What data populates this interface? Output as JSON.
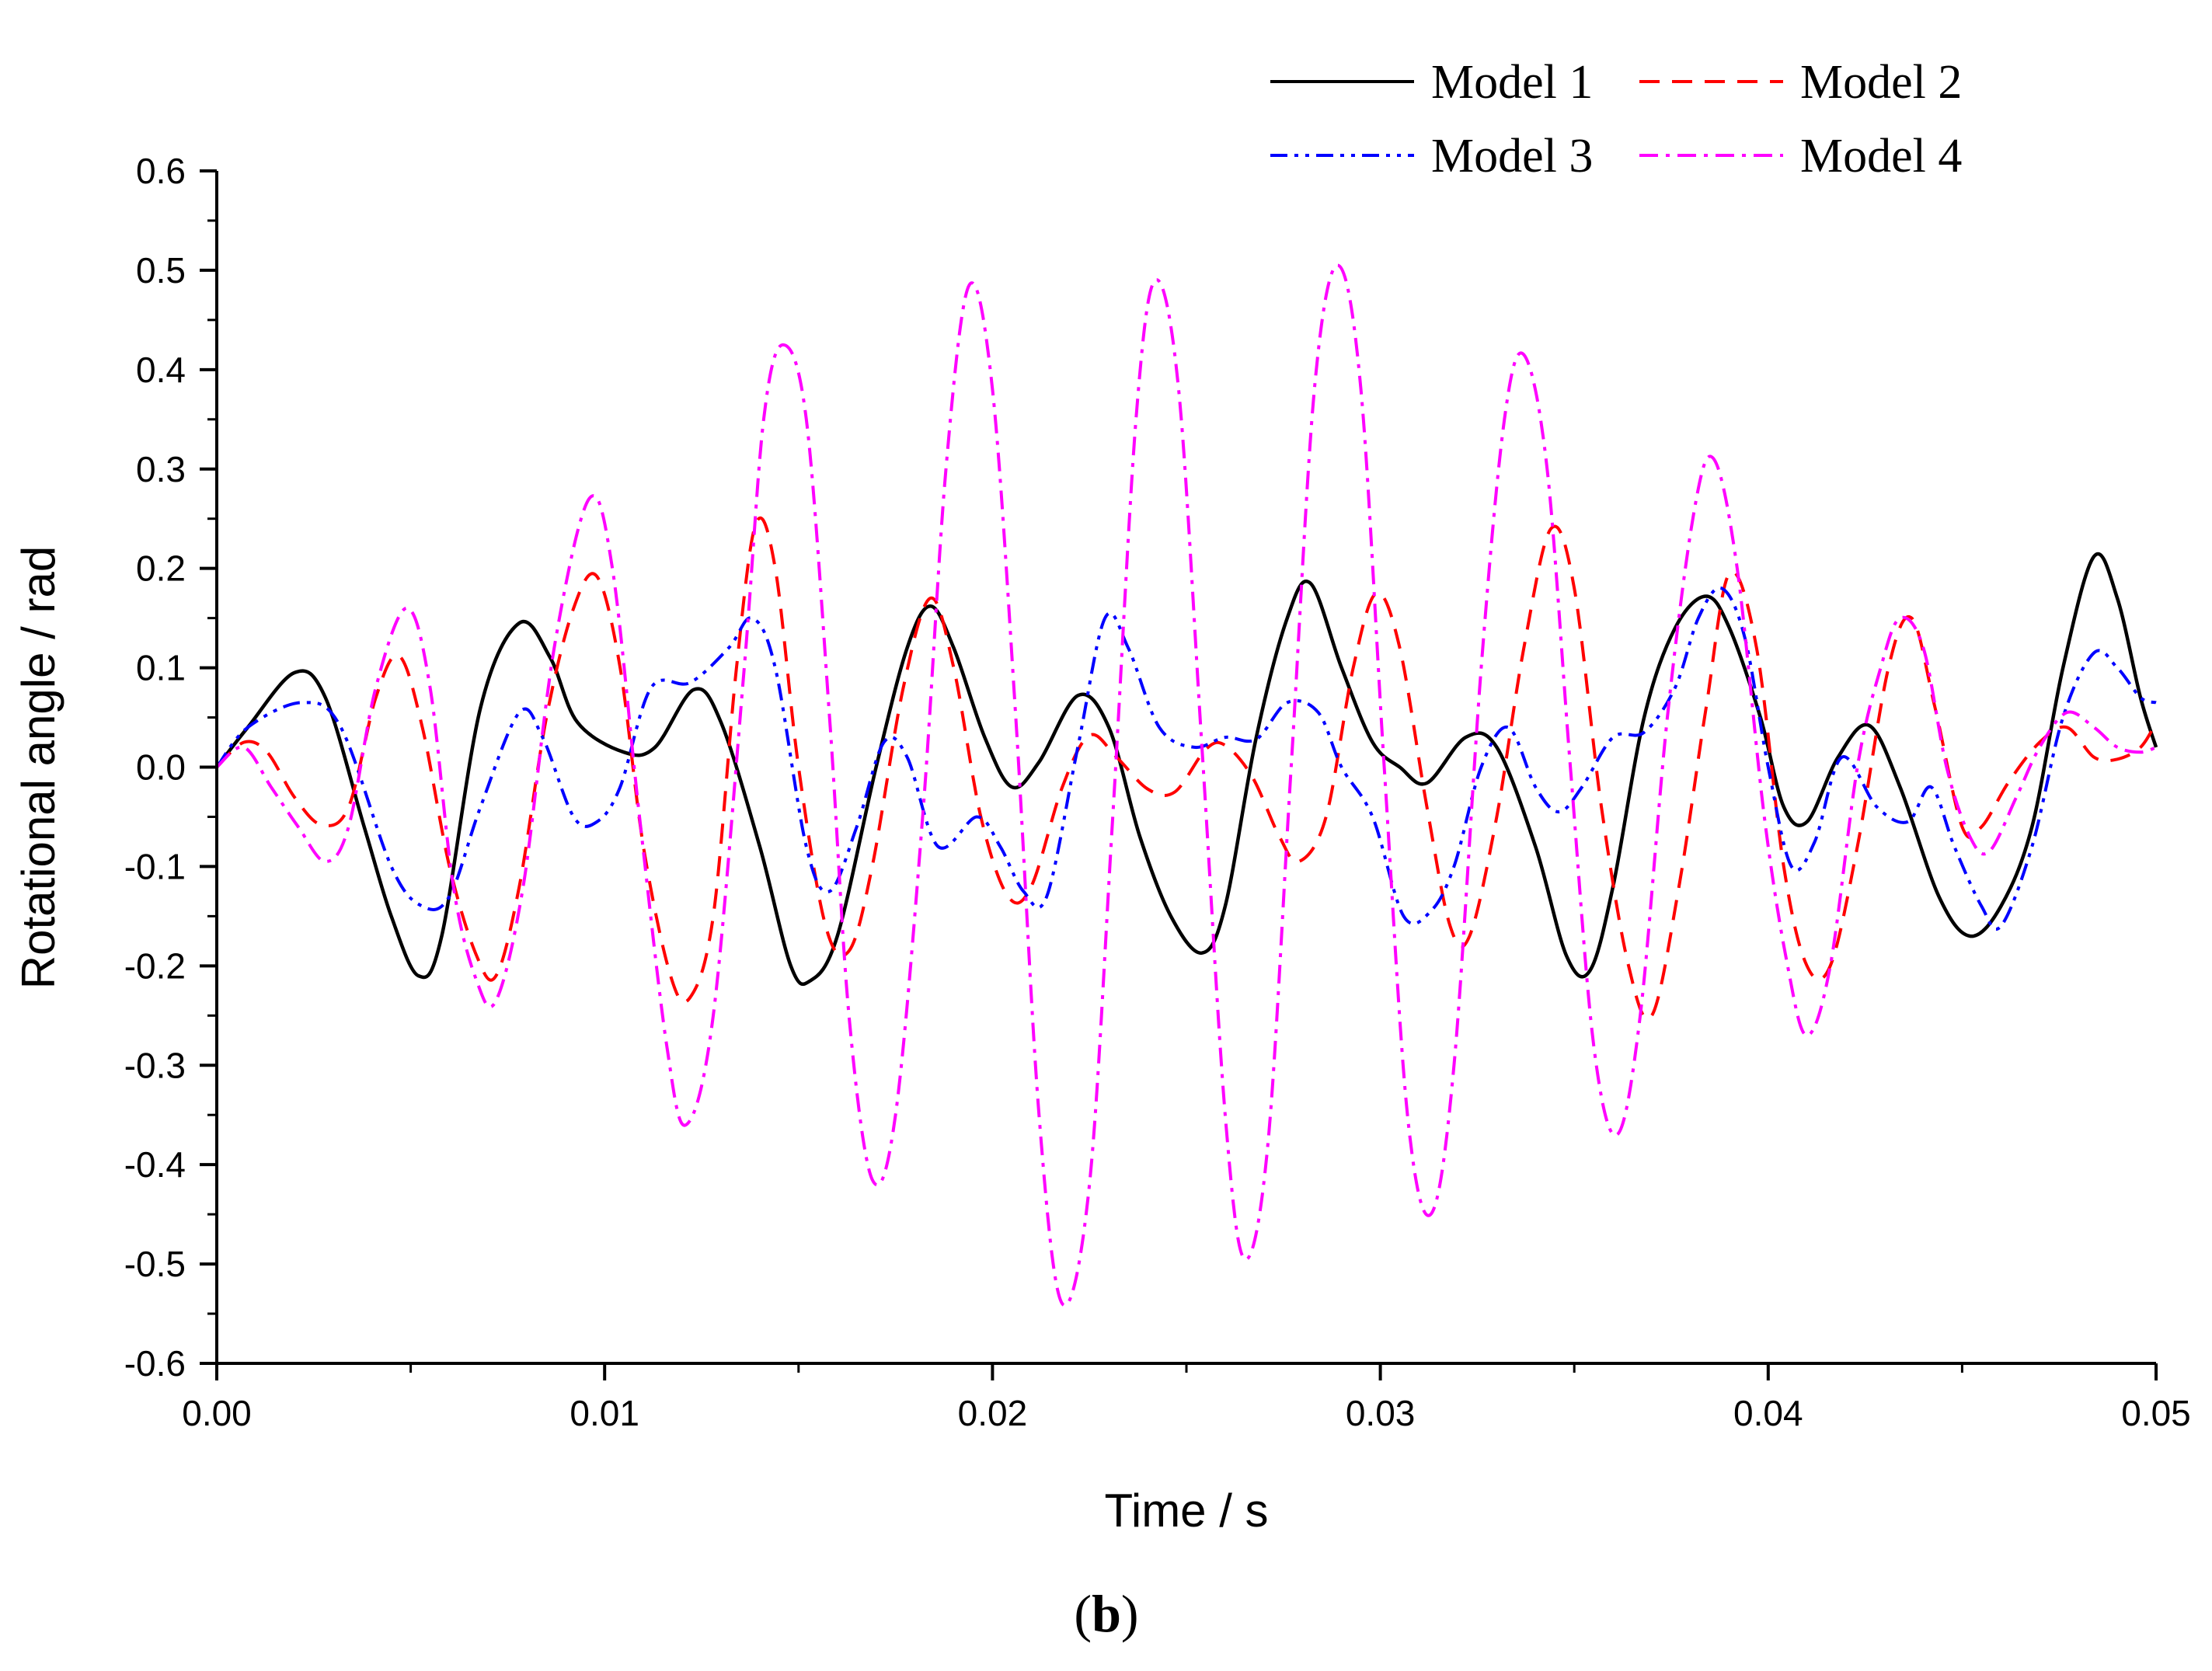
{
  "chart_data": {
    "type": "line",
    "title": "",
    "xlabel": "Time / s",
    "ylabel": "Rotational angle / rad",
    "xlim": [
      0,
      0.05
    ],
    "ylim": [
      -0.6,
      0.6
    ],
    "xticks": [
      0.0,
      0.01,
      0.02,
      0.03,
      0.04,
      0.05
    ],
    "xtick_labels": [
      "0.00",
      "0.01",
      "0.02",
      "0.03",
      "0.04",
      "0.05"
    ],
    "yticks": [
      0.6,
      0.5,
      0.4,
      0.3,
      0.2,
      0.1,
      0.0,
      -0.1,
      -0.2,
      -0.3,
      -0.4,
      -0.5,
      -0.6
    ],
    "ytick_labels": [
      "0.6",
      "0.5",
      "0.4",
      "0.3",
      "0.2",
      "0.1",
      "0.0",
      "-0.1",
      "-0.2",
      "-0.3",
      "-0.4",
      "-0.5",
      "-0.6"
    ],
    "grid": false,
    "legend_position": "top-right",
    "caption": {
      "open": "(",
      "letter": "b",
      "close": ")"
    },
    "series": [
      {
        "name": "Model 1",
        "color": "#000000",
        "style": "solid",
        "points": [
          [
            0.0,
            0.0
          ],
          [
            0.0008,
            0.04
          ],
          [
            0.002,
            0.095
          ],
          [
            0.0028,
            0.07
          ],
          [
            0.0038,
            -0.06
          ],
          [
            0.0045,
            -0.15
          ],
          [
            0.0052,
            -0.21
          ],
          [
            0.0058,
            -0.17
          ],
          [
            0.0068,
            0.06
          ],
          [
            0.0078,
            0.145
          ],
          [
            0.0086,
            0.11
          ],
          [
            0.0093,
            0.045
          ],
          [
            0.0105,
            0.015
          ],
          [
            0.0113,
            0.02
          ],
          [
            0.0123,
            0.078
          ],
          [
            0.013,
            0.045
          ],
          [
            0.014,
            -0.08
          ],
          [
            0.0148,
            -0.2
          ],
          [
            0.0153,
            -0.215
          ],
          [
            0.016,
            -0.17
          ],
          [
            0.017,
            0.0
          ],
          [
            0.0178,
            0.12
          ],
          [
            0.0184,
            0.162
          ],
          [
            0.019,
            0.12
          ],
          [
            0.0198,
            0.03
          ],
          [
            0.0205,
            -0.02
          ],
          [
            0.0212,
            0.005
          ],
          [
            0.0222,
            0.072
          ],
          [
            0.023,
            0.04
          ],
          [
            0.0238,
            -0.07
          ],
          [
            0.0246,
            -0.15
          ],
          [
            0.0254,
            -0.187
          ],
          [
            0.026,
            -0.14
          ],
          [
            0.0268,
            0.03
          ],
          [
            0.0276,
            0.15
          ],
          [
            0.0282,
            0.185
          ],
          [
            0.029,
            0.1
          ],
          [
            0.0298,
            0.025
          ],
          [
            0.0305,
            0.0
          ],
          [
            0.0312,
            -0.016
          ],
          [
            0.0322,
            0.03
          ],
          [
            0.033,
            0.02
          ],
          [
            0.034,
            -0.08
          ],
          [
            0.0348,
            -0.19
          ],
          [
            0.0354,
            -0.205
          ],
          [
            0.036,
            -0.12
          ],
          [
            0.0368,
            0.05
          ],
          [
            0.0376,
            0.14
          ],
          [
            0.0384,
            0.172
          ],
          [
            0.039,
            0.14
          ],
          [
            0.0398,
            0.05
          ],
          [
            0.0404,
            -0.04
          ],
          [
            0.041,
            -0.055
          ],
          [
            0.0418,
            0.01
          ],
          [
            0.0426,
            0.042
          ],
          [
            0.0434,
            -0.02
          ],
          [
            0.0444,
            -0.13
          ],
          [
            0.0452,
            -0.17
          ],
          [
            0.046,
            -0.14
          ],
          [
            0.0468,
            -0.06
          ],
          [
            0.0476,
            0.1
          ],
          [
            0.0484,
            0.212
          ],
          [
            0.049,
            0.17
          ],
          [
            0.0496,
            0.07
          ],
          [
            0.05,
            0.02
          ]
        ]
      },
      {
        "name": "Model 2",
        "color": "#ff0000",
        "style": "dash",
        "points": [
          [
            0.0,
            0.0
          ],
          [
            0.0007,
            0.025
          ],
          [
            0.0013,
            0.015
          ],
          [
            0.002,
            -0.03
          ],
          [
            0.0027,
            -0.058
          ],
          [
            0.0034,
            -0.04
          ],
          [
            0.0041,
            0.07
          ],
          [
            0.0047,
            0.112
          ],
          [
            0.0053,
            0.04
          ],
          [
            0.006,
            -0.1
          ],
          [
            0.0067,
            -0.19
          ],
          [
            0.0072,
            -0.21
          ],
          [
            0.0078,
            -0.12
          ],
          [
            0.0085,
            0.05
          ],
          [
            0.0092,
            0.16
          ],
          [
            0.0098,
            0.192
          ],
          [
            0.0104,
            0.1
          ],
          [
            0.011,
            -0.08
          ],
          [
            0.0117,
            -0.21
          ],
          [
            0.0122,
            -0.232
          ],
          [
            0.0128,
            -0.15
          ],
          [
            0.0134,
            0.1
          ],
          [
            0.0139,
            0.245
          ],
          [
            0.0144,
            0.2
          ],
          [
            0.015,
            0.0
          ],
          [
            0.0157,
            -0.16
          ],
          [
            0.0163,
            -0.185
          ],
          [
            0.0169,
            -0.1
          ],
          [
            0.0177,
            0.08
          ],
          [
            0.0184,
            0.17
          ],
          [
            0.019,
            0.1
          ],
          [
            0.0197,
            -0.05
          ],
          [
            0.0204,
            -0.13
          ],
          [
            0.021,
            -0.12
          ],
          [
            0.0218,
            -0.02
          ],
          [
            0.0225,
            0.032
          ],
          [
            0.0232,
            0.01
          ],
          [
            0.024,
            -0.022
          ],
          [
            0.0247,
            -0.025
          ],
          [
            0.0255,
            0.018
          ],
          [
            0.026,
            0.022
          ],
          [
            0.0267,
            -0.01
          ],
          [
            0.0274,
            -0.07
          ],
          [
            0.0279,
            -0.095
          ],
          [
            0.0286,
            -0.05
          ],
          [
            0.0293,
            0.1
          ],
          [
            0.0299,
            0.175
          ],
          [
            0.0305,
            0.12
          ],
          [
            0.0312,
            -0.04
          ],
          [
            0.0318,
            -0.16
          ],
          [
            0.0323,
            -0.17
          ],
          [
            0.033,
            -0.05
          ],
          [
            0.0337,
            0.12
          ],
          [
            0.0344,
            0.24
          ],
          [
            0.035,
            0.18
          ],
          [
            0.0357,
            -0.04
          ],
          [
            0.0364,
            -0.2
          ],
          [
            0.037,
            -0.25
          ],
          [
            0.0377,
            -0.12
          ],
          [
            0.0384,
            0.06
          ],
          [
            0.039,
            0.195
          ],
          [
            0.0397,
            0.12
          ],
          [
            0.0404,
            -0.1
          ],
          [
            0.041,
            -0.2
          ],
          [
            0.0416,
            -0.2
          ],
          [
            0.0423,
            -0.08
          ],
          [
            0.0431,
            0.1
          ],
          [
            0.0437,
            0.15
          ],
          [
            0.0443,
            0.06
          ],
          [
            0.045,
            -0.06
          ],
          [
            0.0455,
            -0.06
          ],
          [
            0.0462,
            -0.015
          ],
          [
            0.047,
            0.025
          ],
          [
            0.0477,
            0.04
          ],
          [
            0.0484,
            0.01
          ],
          [
            0.049,
            0.008
          ],
          [
            0.0496,
            0.02
          ],
          [
            0.05,
            0.045
          ]
        ]
      },
      {
        "name": "Model 3",
        "color": "#0000ff",
        "style": "dash-dot-dot",
        "points": [
          [
            0.0,
            0.0
          ],
          [
            0.0008,
            0.04
          ],
          [
            0.0022,
            0.065
          ],
          [
            0.0032,
            0.04
          ],
          [
            0.0045,
            -0.1
          ],
          [
            0.0053,
            -0.14
          ],
          [
            0.006,
            -0.13
          ],
          [
            0.0068,
            -0.04
          ],
          [
            0.0078,
            0.055
          ],
          [
            0.0084,
            0.03
          ],
          [
            0.0092,
            -0.05
          ],
          [
            0.0098,
            -0.055
          ],
          [
            0.0104,
            -0.02
          ],
          [
            0.0112,
            0.08
          ],
          [
            0.0122,
            0.085
          ],
          [
            0.0132,
            0.12
          ],
          [
            0.0138,
            0.15
          ],
          [
            0.0144,
            0.1
          ],
          [
            0.0152,
            -0.08
          ],
          [
            0.0158,
            -0.125
          ],
          [
            0.0165,
            -0.06
          ],
          [
            0.0172,
            0.025
          ],
          [
            0.0178,
            0.01
          ],
          [
            0.0186,
            -0.08
          ],
          [
            0.0196,
            -0.05
          ],
          [
            0.0202,
            -0.08
          ],
          [
            0.0208,
            -0.125
          ],
          [
            0.0214,
            -0.13
          ],
          [
            0.0222,
            0.02
          ],
          [
            0.0229,
            0.15
          ],
          [
            0.0235,
            0.12
          ],
          [
            0.0243,
            0.04
          ],
          [
            0.0252,
            0.02
          ],
          [
            0.026,
            0.03
          ],
          [
            0.0268,
            0.028
          ],
          [
            0.0276,
            0.065
          ],
          [
            0.0284,
            0.055
          ],
          [
            0.029,
            0.0
          ],
          [
            0.0298,
            -0.05
          ],
          [
            0.0306,
            -0.15
          ],
          [
            0.0313,
            -0.145
          ],
          [
            0.0319,
            -0.1
          ],
          [
            0.0326,
            0.0
          ],
          [
            0.0333,
            0.04
          ],
          [
            0.034,
            -0.02
          ],
          [
            0.0346,
            -0.045
          ],
          [
            0.0352,
            -0.02
          ],
          [
            0.036,
            0.03
          ],
          [
            0.0368,
            0.035
          ],
          [
            0.0376,
            0.08
          ],
          [
            0.0382,
            0.15
          ],
          [
            0.0388,
            0.18
          ],
          [
            0.0394,
            0.13
          ],
          [
            0.04,
            0.0
          ],
          [
            0.0406,
            -0.1
          ],
          [
            0.0412,
            -0.075
          ],
          [
            0.0419,
            0.01
          ],
          [
            0.0428,
            -0.04
          ],
          [
            0.0436,
            -0.055
          ],
          [
            0.0442,
            -0.02
          ],
          [
            0.0448,
            -0.08
          ],
          [
            0.0455,
            -0.14
          ],
          [
            0.046,
            -0.16
          ],
          [
            0.0468,
            -0.08
          ],
          [
            0.0476,
            0.05
          ],
          [
            0.0484,
            0.115
          ],
          [
            0.049,
            0.1
          ],
          [
            0.0496,
            0.07
          ],
          [
            0.05,
            0.065
          ]
        ]
      },
      {
        "name": "Model 4",
        "color": "#ff00ff",
        "style": "dash-dot",
        "points": [
          [
            0.0,
            0.0
          ],
          [
            0.0007,
            0.02
          ],
          [
            0.0014,
            -0.02
          ],
          [
            0.0021,
            -0.06
          ],
          [
            0.0028,
            -0.095
          ],
          [
            0.0034,
            -0.06
          ],
          [
            0.0041,
            0.08
          ],
          [
            0.0049,
            0.16
          ],
          [
            0.0055,
            0.08
          ],
          [
            0.0061,
            -0.12
          ],
          [
            0.0067,
            -0.215
          ],
          [
            0.0072,
            -0.235
          ],
          [
            0.0079,
            -0.12
          ],
          [
            0.0087,
            0.12
          ],
          [
            0.0096,
            0.27
          ],
          [
            0.0102,
            0.2
          ],
          [
            0.0109,
            -0.05
          ],
          [
            0.0116,
            -0.28
          ],
          [
            0.0121,
            -0.36
          ],
          [
            0.0128,
            -0.25
          ],
          [
            0.0136,
            0.1
          ],
          [
            0.0141,
            0.35
          ],
          [
            0.0146,
            0.425
          ],
          [
            0.0152,
            0.35
          ],
          [
            0.0158,
            0.05
          ],
          [
            0.0163,
            -0.25
          ],
          [
            0.0169,
            -0.415
          ],
          [
            0.0175,
            -0.35
          ],
          [
            0.0182,
            -0.05
          ],
          [
            0.0188,
            0.3
          ],
          [
            0.0194,
            0.485
          ],
          [
            0.02,
            0.38
          ],
          [
            0.0206,
            0.05
          ],
          [
            0.0212,
            -0.35
          ],
          [
            0.0218,
            -0.54
          ],
          [
            0.0225,
            -0.42
          ],
          [
            0.0231,
            -0.05
          ],
          [
            0.0237,
            0.35
          ],
          [
            0.0242,
            0.49
          ],
          [
            0.0248,
            0.38
          ],
          [
            0.0254,
            0.02
          ],
          [
            0.026,
            -0.35
          ],
          [
            0.0265,
            -0.495
          ],
          [
            0.0271,
            -0.38
          ],
          [
            0.0277,
            0.0
          ],
          [
            0.0283,
            0.38
          ],
          [
            0.0289,
            0.505
          ],
          [
            0.0295,
            0.38
          ],
          [
            0.0301,
            0.0
          ],
          [
            0.0307,
            -0.35
          ],
          [
            0.0313,
            -0.45
          ],
          [
            0.0319,
            -0.3
          ],
          [
            0.0326,
            0.1
          ],
          [
            0.0332,
            0.35
          ],
          [
            0.0337,
            0.415
          ],
          [
            0.0343,
            0.3
          ],
          [
            0.0349,
            0.0
          ],
          [
            0.0355,
            -0.28
          ],
          [
            0.0361,
            -0.37
          ],
          [
            0.0367,
            -0.25
          ],
          [
            0.0374,
            0.05
          ],
          [
            0.0381,
            0.26
          ],
          [
            0.0386,
            0.31
          ],
          [
            0.0392,
            0.2
          ],
          [
            0.0399,
            -0.05
          ],
          [
            0.0405,
            -0.2
          ],
          [
            0.041,
            -0.27
          ],
          [
            0.0416,
            -0.2
          ],
          [
            0.0423,
            0.0
          ],
          [
            0.0429,
            0.1
          ],
          [
            0.0434,
            0.15
          ],
          [
            0.044,
            0.12
          ],
          [
            0.0446,
            0.0
          ],
          [
            0.0452,
            -0.07
          ],
          [
            0.0457,
            -0.085
          ],
          [
            0.0464,
            -0.03
          ],
          [
            0.047,
            0.02
          ],
          [
            0.0477,
            0.055
          ],
          [
            0.0484,
            0.04
          ],
          [
            0.049,
            0.02
          ],
          [
            0.0496,
            0.015
          ],
          [
            0.05,
            0.02
          ]
        ]
      }
    ]
  }
}
